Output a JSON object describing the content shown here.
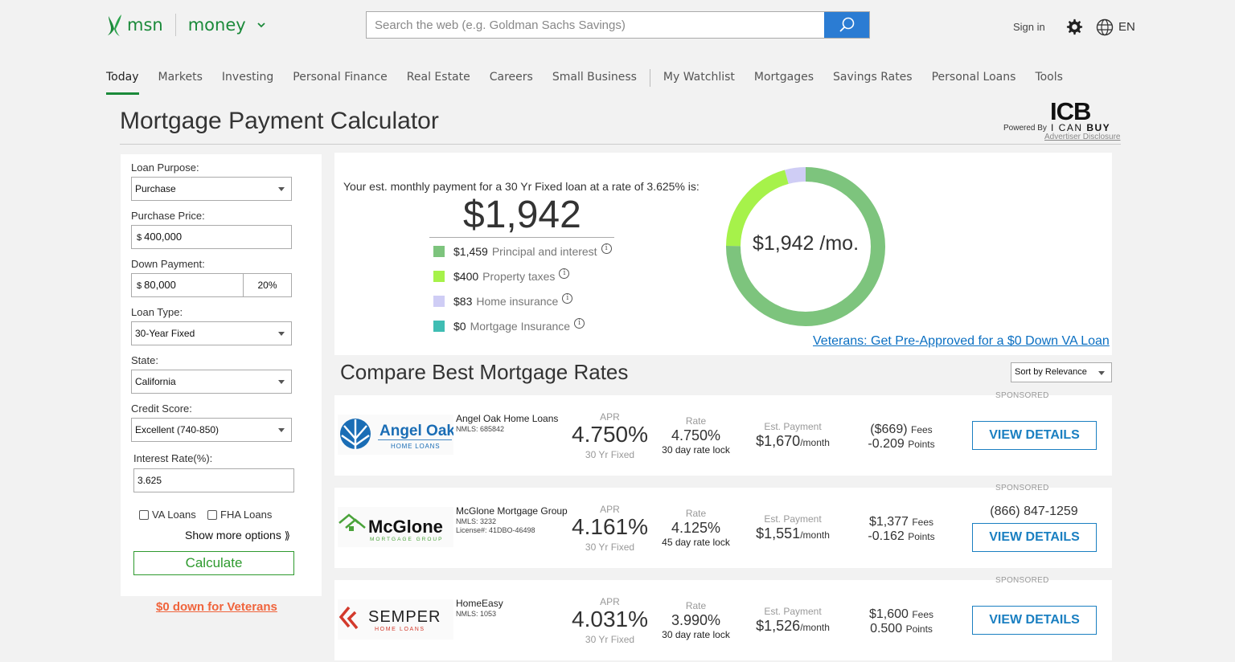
{
  "header": {
    "brand": "msn",
    "section": "money",
    "search_placeholder": "Search the web (e.g. Goldman Sachs Savings)",
    "sign_in": "Sign in",
    "language": "EN"
  },
  "nav": {
    "items": [
      {
        "label": "Today",
        "active": true
      },
      {
        "label": "Markets"
      },
      {
        "label": "Investing"
      },
      {
        "label": "Personal Finance"
      },
      {
        "label": "Real Estate"
      },
      {
        "label": "Careers"
      },
      {
        "label": "Small Business"
      },
      {
        "label": "My Watchlist"
      },
      {
        "label": "Mortgages"
      },
      {
        "label": "Savings Rates"
      },
      {
        "label": "Personal Loans"
      },
      {
        "label": "Tools"
      }
    ]
  },
  "page": {
    "title": "Mortgage Payment Calculator",
    "powered_by": "Powered By",
    "provider_logo_text": "ICB I CAN BUY",
    "advertiser_disclosure": "Advertiser Disclosure"
  },
  "form": {
    "loan_purpose_label": "Loan Purpose:",
    "loan_purpose": "Purchase",
    "purchase_price_label": "Purchase Price:",
    "currency": "$",
    "purchase_price": "400,000",
    "down_payment_label": "Down Payment:",
    "down_payment": "80,000",
    "down_payment_pct": "20%",
    "loan_type_label": "Loan Type:",
    "loan_type": "30-Year Fixed",
    "state_label": "State:",
    "state": "California",
    "credit_score_label": "Credit Score:",
    "credit_score": "Excellent (740-850)",
    "interest_rate_label": "Interest Rate(%):",
    "interest_rate": "3.625",
    "va_loans": "VA Loans",
    "fha_loans": "FHA Loans",
    "show_more": "Show more options",
    "calculate": "Calculate",
    "veterans_link": "$0 down for Veterans"
  },
  "summary": {
    "intro": "Your est. monthly payment for a 30 Yr Fixed loan at a rate of 3.625% is:",
    "payment": "$1,942",
    "donut_label": "$1,942 /mo.",
    "breakdown": [
      {
        "amount": "$1,459",
        "label": "Principal and interest",
        "color": "#7dc47d",
        "value": 1459
      },
      {
        "amount": "$400",
        "label": "Property taxes",
        "color": "#a6f24a",
        "value": 400
      },
      {
        "amount": "$83",
        "label": "Home insurance",
        "color": "#cfcdf5",
        "value": 83
      },
      {
        "amount": "$0",
        "label": "Mortgage Insurance",
        "color": "#3fbdb3",
        "value": 0
      }
    ],
    "va_link": "Veterans: Get Pre-Approved for a $0 Down VA Loan"
  },
  "compare": {
    "title": "Compare Best Mortgage Rates",
    "sort": "Sort by Relevance"
  },
  "offers": [
    {
      "sponsored": "SPONSORED",
      "name": "Angel Oak Home Loans",
      "nmls": "NMLS: 685842",
      "license": "",
      "logo_text": "Angel Oak",
      "logo_sub": "HOME LOANS",
      "apr_label": "APR",
      "apr": "4.750%",
      "term": "30 Yr Fixed",
      "rate_label": "Rate",
      "rate": "4.750%",
      "lock": "30 day rate lock",
      "pay_label": "Est. Payment",
      "payment": "$1,670",
      "per": "/month",
      "fees": "($669)",
      "fees_unit": "Fees",
      "points": "-0.209",
      "points_unit": "Points",
      "phone": "",
      "cta": "VIEW DETAILS"
    },
    {
      "sponsored": "SPONSORED",
      "name": "McGlone Mortgage Group",
      "nmls": "NMLS: 3232",
      "license": "License#: 41DBO-46498",
      "logo_text": "McGlone",
      "logo_sub": "MORTGAGE GROUP",
      "apr_label": "APR",
      "apr": "4.161%",
      "term": "30 Yr Fixed",
      "rate_label": "Rate",
      "rate": "4.125%",
      "lock": "45 day rate lock",
      "pay_label": "Est. Payment",
      "payment": "$1,551",
      "per": "/month",
      "fees": "$1,377",
      "fees_unit": "Fees",
      "points": "-0.162",
      "points_unit": "Points",
      "phone": "(866) 847-1259",
      "cta": "VIEW DETAILS"
    },
    {
      "sponsored": "SPONSORED",
      "name": "HomeEasy",
      "nmls": "NMLS: 1053",
      "license": "",
      "logo_text": "SEMPER",
      "logo_sub": "HOME LOANS",
      "apr_label": "APR",
      "apr": "4.031%",
      "term": "30 Yr Fixed",
      "rate_label": "Rate",
      "rate": "3.990%",
      "lock": "30 day rate lock",
      "pay_label": "Est. Payment",
      "payment": "$1,526",
      "per": "/month",
      "fees": "$1,600",
      "fees_unit": "Fees",
      "points": "0.500",
      "points_unit": "Points",
      "phone": "",
      "cta": "VIEW DETAILS"
    }
  ]
}
